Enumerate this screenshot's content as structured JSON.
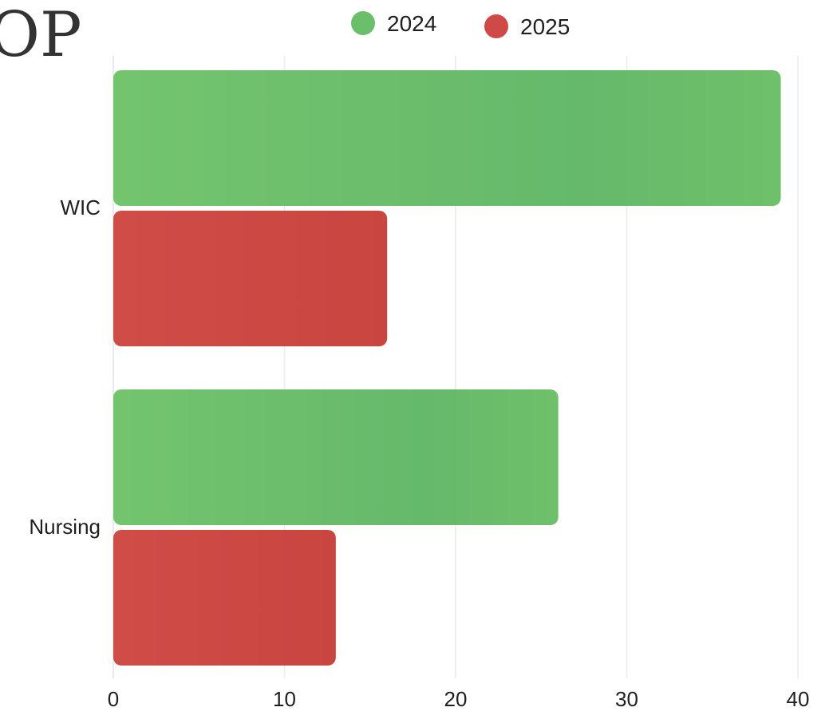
{
  "page": {
    "title_fragment": "OP"
  },
  "chart_data": {
    "type": "bar",
    "orientation": "horizontal",
    "categories": [
      "WIC",
      "Nursing"
    ],
    "series": [
      {
        "name": "2024",
        "values": [
          39,
          26
        ],
        "color": "#6cbf6a"
      },
      {
        "name": "2025",
        "values": [
          16,
          13
        ],
        "color": "#cf4a47"
      }
    ],
    "xlim": [
      0,
      40
    ],
    "x_ticks": [
      0,
      10,
      20,
      30,
      40
    ],
    "legend_position": "top",
    "grid": true
  }
}
